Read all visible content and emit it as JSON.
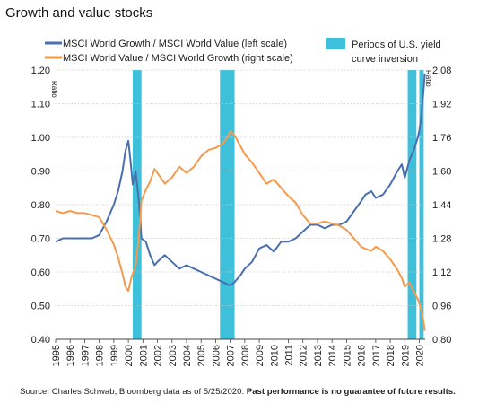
{
  "title": "Growth and value stocks",
  "footer": {
    "source": "Source: Charles Schwab, Bloomberg data as of 5/25/2020.",
    "note": "Past performance is no guarantee of future results."
  },
  "colors": {
    "growth_line": "#4a6fb0",
    "value_line": "#f39a4c",
    "inversion": "#3fc0da"
  },
  "chart_data": {
    "type": "line",
    "left_axis": {
      "label": "Ratio",
      "min": 0.4,
      "max": 1.2,
      "ticks": [
        "0.40",
        "0.50",
        "0.60",
        "0.70",
        "0.80",
        "0.90",
        "1.00",
        "1.10",
        "1.20"
      ]
    },
    "right_axis": {
      "label": "Ratio",
      "min": 0.8,
      "max": 2.08,
      "ticks": [
        "0.80",
        "0.96",
        "1.12",
        "1.28",
        "1.44",
        "1.60",
        "1.76",
        "1.92",
        "2.08"
      ]
    },
    "x_axis": {
      "min": 1995,
      "max": 2020.4,
      "ticks": [
        "1995",
        "1996",
        "1997",
        "1998",
        "1999",
        "2000",
        "2001",
        "2002",
        "2003",
        "2004",
        "2005",
        "2006",
        "2007",
        "2008",
        "2009",
        "2010",
        "2011",
        "2012",
        "2013",
        "2014",
        "2015",
        "2016",
        "2017",
        "2018",
        "2019",
        "2020"
      ]
    },
    "legend": {
      "growth": "MSCI World Growth / MSCI World Value (left scale)",
      "value": "MSCI World Value / MSCI World Growth (right scale)",
      "inversion_line1": "Periods of U.S. yield",
      "inversion_line2": "curve inversion"
    },
    "inversion_periods": [
      [
        2000.3,
        2000.9
      ],
      [
        2006.3,
        2007.3
      ],
      [
        2019.2,
        2019.8
      ],
      [
        2020.0,
        2020.3
      ]
    ],
    "series": [
      {
        "key": "growth",
        "axis": "left",
        "points": [
          [
            1995.0,
            0.69
          ],
          [
            1995.5,
            0.7
          ],
          [
            1996.0,
            0.7
          ],
          [
            1996.5,
            0.7
          ],
          [
            1997.0,
            0.7
          ],
          [
            1997.5,
            0.7
          ],
          [
            1998.0,
            0.71
          ],
          [
            1998.5,
            0.75
          ],
          [
            1999.0,
            0.8
          ],
          [
            1999.3,
            0.84
          ],
          [
            1999.6,
            0.9
          ],
          [
            1999.8,
            0.96
          ],
          [
            2000.0,
            0.99
          ],
          [
            2000.15,
            0.93
          ],
          [
            2000.3,
            0.86
          ],
          [
            2000.5,
            0.9
          ],
          [
            2000.7,
            0.82
          ],
          [
            2000.9,
            0.7
          ],
          [
            2001.2,
            0.69
          ],
          [
            2001.5,
            0.65
          ],
          [
            2001.8,
            0.62
          ],
          [
            2002.0,
            0.63
          ],
          [
            2002.5,
            0.65
          ],
          [
            2003.0,
            0.63
          ],
          [
            2003.5,
            0.61
          ],
          [
            2004.0,
            0.62
          ],
          [
            2004.5,
            0.61
          ],
          [
            2005.0,
            0.6
          ],
          [
            2005.5,
            0.59
          ],
          [
            2006.0,
            0.58
          ],
          [
            2006.5,
            0.57
          ],
          [
            2007.0,
            0.56
          ],
          [
            2007.3,
            0.57
          ],
          [
            2007.7,
            0.59
          ],
          [
            2008.0,
            0.61
          ],
          [
            2008.5,
            0.63
          ],
          [
            2009.0,
            0.67
          ],
          [
            2009.5,
            0.68
          ],
          [
            2010.0,
            0.66
          ],
          [
            2010.5,
            0.69
          ],
          [
            2011.0,
            0.69
          ],
          [
            2011.5,
            0.7
          ],
          [
            2012.0,
            0.72
          ],
          [
            2012.5,
            0.74
          ],
          [
            2013.0,
            0.74
          ],
          [
            2013.5,
            0.73
          ],
          [
            2014.0,
            0.74
          ],
          [
            2014.5,
            0.74
          ],
          [
            2015.0,
            0.75
          ],
          [
            2015.5,
            0.78
          ],
          [
            2016.0,
            0.81
          ],
          [
            2016.3,
            0.83
          ],
          [
            2016.7,
            0.84
          ],
          [
            2017.0,
            0.82
          ],
          [
            2017.5,
            0.83
          ],
          [
            2018.0,
            0.86
          ],
          [
            2018.5,
            0.9
          ],
          [
            2018.8,
            0.92
          ],
          [
            2019.0,
            0.88
          ],
          [
            2019.3,
            0.93
          ],
          [
            2019.6,
            0.96
          ],
          [
            2019.9,
            1.0
          ],
          [
            2020.0,
            1.02
          ],
          [
            2020.1,
            1.05
          ],
          [
            2020.25,
            1.12
          ],
          [
            2020.38,
            1.19
          ]
        ]
      },
      {
        "key": "value",
        "axis": "right",
        "points": [
          [
            1995.0,
            1.41
          ],
          [
            1995.5,
            1.4
          ],
          [
            1996.0,
            1.41
          ],
          [
            1996.5,
            1.4
          ],
          [
            1997.0,
            1.4
          ],
          [
            1997.5,
            1.39
          ],
          [
            1998.0,
            1.38
          ],
          [
            1998.5,
            1.32
          ],
          [
            1999.0,
            1.25
          ],
          [
            1999.3,
            1.19
          ],
          [
            1999.6,
            1.11
          ],
          [
            1999.8,
            1.05
          ],
          [
            2000.0,
            1.03
          ],
          [
            2000.2,
            1.09
          ],
          [
            2000.5,
            1.15
          ],
          [
            2000.7,
            1.27
          ],
          [
            2000.9,
            1.46
          ],
          [
            2001.2,
            1.51
          ],
          [
            2001.5,
            1.55
          ],
          [
            2001.8,
            1.61
          ],
          [
            2002.0,
            1.59
          ],
          [
            2002.5,
            1.54
          ],
          [
            2003.0,
            1.57
          ],
          [
            2003.5,
            1.62
          ],
          [
            2004.0,
            1.59
          ],
          [
            2004.5,
            1.62
          ],
          [
            2005.0,
            1.67
          ],
          [
            2005.5,
            1.7
          ],
          [
            2006.0,
            1.71
          ],
          [
            2006.5,
            1.73
          ],
          [
            2006.8,
            1.76
          ],
          [
            2007.0,
            1.79
          ],
          [
            2007.3,
            1.77
          ],
          [
            2007.7,
            1.72
          ],
          [
            2008.0,
            1.68
          ],
          [
            2008.5,
            1.64
          ],
          [
            2009.0,
            1.59
          ],
          [
            2009.5,
            1.54
          ],
          [
            2010.0,
            1.56
          ],
          [
            2010.5,
            1.52
          ],
          [
            2011.0,
            1.48
          ],
          [
            2011.5,
            1.45
          ],
          [
            2012.0,
            1.39
          ],
          [
            2012.5,
            1.35
          ],
          [
            2013.0,
            1.35
          ],
          [
            2013.5,
            1.36
          ],
          [
            2014.0,
            1.35
          ],
          [
            2014.5,
            1.34
          ],
          [
            2015.0,
            1.32
          ],
          [
            2015.5,
            1.28
          ],
          [
            2016.0,
            1.24
          ],
          [
            2016.3,
            1.23
          ],
          [
            2016.7,
            1.22
          ],
          [
            2017.0,
            1.24
          ],
          [
            2017.5,
            1.22
          ],
          [
            2018.0,
            1.18
          ],
          [
            2018.5,
            1.13
          ],
          [
            2018.8,
            1.09
          ],
          [
            2019.0,
            1.05
          ],
          [
            2019.3,
            1.07
          ],
          [
            2019.6,
            1.03
          ],
          [
            2019.9,
            0.99
          ],
          [
            2020.1,
            0.95
          ],
          [
            2020.25,
            0.9
          ],
          [
            2020.38,
            0.84
          ]
        ]
      }
    ]
  }
}
